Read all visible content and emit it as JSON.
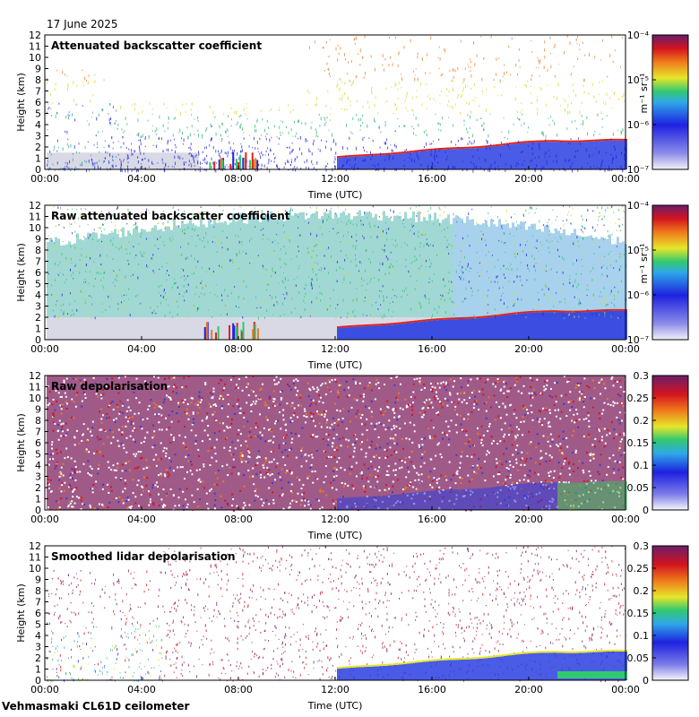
{
  "date_label": "17 June 2025",
  "footer": "Vehmasmaki CL61D ceilometer",
  "colors": {
    "sky_blue": "#2a3ee0",
    "noise_green": "#2fb36f",
    "aerosol_red": "#e0241a",
    "depol_purple": "#7a1a5a"
  },
  "chart_data": [
    {
      "type": "heatmap",
      "title": "Attenuated backscatter coefficient",
      "xlabel": "Time (UTC)",
      "ylabel": "Height (km)",
      "x_ticks": [
        "00:00",
        "04:00",
        "08:00",
        "12:00",
        "16:00",
        "20:00",
        "00:00"
      ],
      "y_ticks": [
        "0",
        "1",
        "2",
        "3",
        "4",
        "5",
        "6",
        "7",
        "8",
        "9",
        "10",
        "11",
        "12"
      ],
      "ylim": [
        0,
        12
      ],
      "colorbar": {
        "scale": "log",
        "ticks": [
          "10⁻⁷",
          "10⁻⁶",
          "10⁻⁵",
          "10⁻⁴"
        ],
        "unit": "m⁻¹ sr⁻¹"
      }
    },
    {
      "type": "heatmap",
      "title": "Raw attenuated backscatter coefficient",
      "xlabel": "Time (UTC)",
      "ylabel": "Height (km)",
      "x_ticks": [
        "00:00",
        "04:00",
        "08:00",
        "12:00",
        "16:00",
        "20:00",
        "00:00"
      ],
      "y_ticks": [
        "0",
        "1",
        "2",
        "3",
        "4",
        "5",
        "6",
        "7",
        "8",
        "9",
        "10",
        "11",
        "12"
      ],
      "ylim": [
        0,
        12
      ],
      "colorbar": {
        "scale": "log",
        "ticks": [
          "10⁻⁷",
          "10⁻⁶",
          "10⁻⁵",
          "10⁻⁴"
        ],
        "unit": "m⁻¹ sr⁻¹"
      }
    },
    {
      "type": "heatmap",
      "title": "Raw depolarisation",
      "xlabel": "Time (UTC)",
      "ylabel": "Height (km)",
      "x_ticks": [
        "00:00",
        "04:00",
        "08:00",
        "12:00",
        "16:00",
        "20:00",
        "00:00"
      ],
      "y_ticks": [
        "0",
        "1",
        "2",
        "3",
        "4",
        "5",
        "6",
        "7",
        "8",
        "9",
        "10",
        "11",
        "12"
      ],
      "ylim": [
        0,
        12
      ],
      "colorbar": {
        "scale": "linear",
        "ticks": [
          "0",
          "0.05",
          "0.1",
          "0.15",
          "0.2",
          "0.25",
          "0.3"
        ],
        "unit": ""
      }
    },
    {
      "type": "heatmap",
      "title": "Smoothed lidar depolarisation",
      "xlabel": "Time (UTC)",
      "ylabel": "Height (km)",
      "x_ticks": [
        "00:00",
        "04:00",
        "08:00",
        "12:00",
        "16:00",
        "20:00",
        "00:00"
      ],
      "y_ticks": [
        "0",
        "1",
        "2",
        "3",
        "4",
        "5",
        "6",
        "7",
        "8",
        "9",
        "10",
        "11",
        "12"
      ],
      "ylim": [
        0,
        12
      ],
      "colorbar": {
        "scale": "linear",
        "ticks": [
          "0",
          "0.05",
          "0.1",
          "0.15",
          "0.2",
          "0.25",
          "0.3"
        ],
        "unit": ""
      }
    }
  ]
}
